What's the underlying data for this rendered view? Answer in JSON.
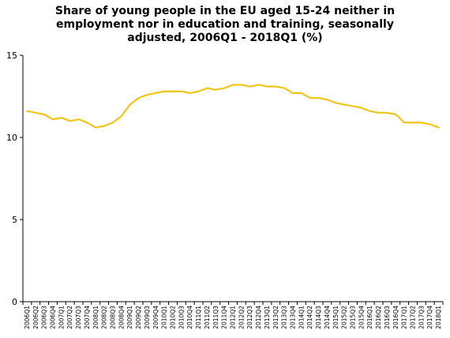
{
  "chart_data": {
    "type": "line",
    "title_lines": [
      "Share of young people in the EU aged 15-24 neither in",
      "employment nor in education and training, seasonally",
      "adjusted, 2006Q1 - 2018Q1 (%)"
    ],
    "ylim": [
      0,
      15
    ],
    "yticks": [
      0,
      5,
      10,
      15
    ],
    "grid": false,
    "legend": "none",
    "line_color": "#F0C419",
    "categories": [
      "2006Q1",
      "2006Q2",
      "2006Q3",
      "2006Q4",
      "2007Q1",
      "2007Q2",
      "2007Q3",
      "2007Q4",
      "2008Q1",
      "2008Q2",
      "2008Q3",
      "2008Q4",
      "2009Q1",
      "2009Q2",
      "2009Q3",
      "2009Q4",
      "2010Q1",
      "2010Q2",
      "2010Q3",
      "2010Q4",
      "2011Q1",
      "2011Q2",
      "2011Q3",
      "2011Q4",
      "2012Q1",
      "2012Q2",
      "2012Q3",
      "2012Q4",
      "2013Q1",
      "2013Q2",
      "2013Q3",
      "2013Q4",
      "2014Q1",
      "2014Q2",
      "2014Q3",
      "2014Q4",
      "2015Q1",
      "2015Q2",
      "2015Q3",
      "2015Q4",
      "2016Q1",
      "2016Q2",
      "2016Q3",
      "2016Q4",
      "2017Q1",
      "2017Q2",
      "2017Q3",
      "2017Q4",
      "2018Q1"
    ],
    "values": [
      11.6,
      11.5,
      11.4,
      11.1,
      11.2,
      11.0,
      11.1,
      10.9,
      10.6,
      10.7,
      10.9,
      11.3,
      12.0,
      12.4,
      12.6,
      12.7,
      12.8,
      12.8,
      12.8,
      12.7,
      12.8,
      13.0,
      12.9,
      13.0,
      13.2,
      13.2,
      13.1,
      13.2,
      13.1,
      13.1,
      13.0,
      12.7,
      12.7,
      12.4,
      12.4,
      12.3,
      12.1,
      12.0,
      11.9,
      11.8,
      11.6,
      11.5,
      11.5,
      11.4,
      10.9,
      10.9,
      10.9,
      10.8,
      10.6
    ]
  }
}
